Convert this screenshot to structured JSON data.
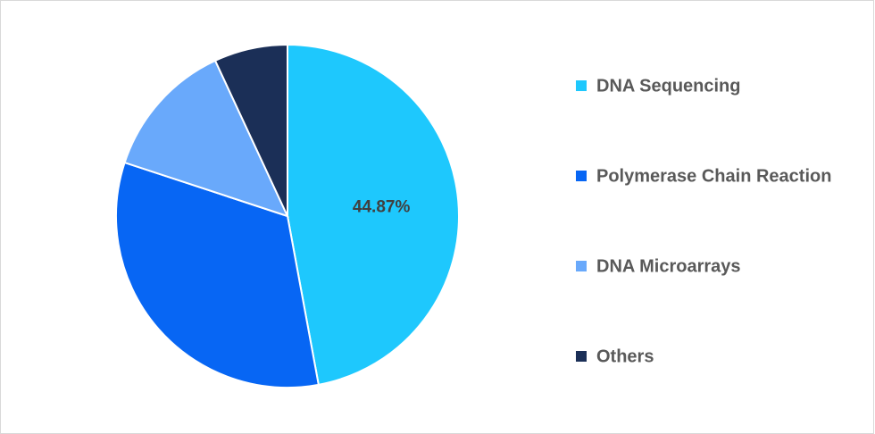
{
  "chart_data": {
    "type": "pie",
    "categories": [
      "DNA Sequencing",
      "Polymerase Chain Reaction",
      "DNA Microarrays",
      "Others"
    ],
    "values": [
      44.87,
      31.4,
      12.4,
      6.6
    ],
    "value_labels": [
      "44.87%",
      null,
      null,
      null
    ],
    "colors": [
      "#1ec8fd",
      "#0766f4",
      "#69a9fb",
      "#1b2f57"
    ],
    "legend": "right"
  }
}
